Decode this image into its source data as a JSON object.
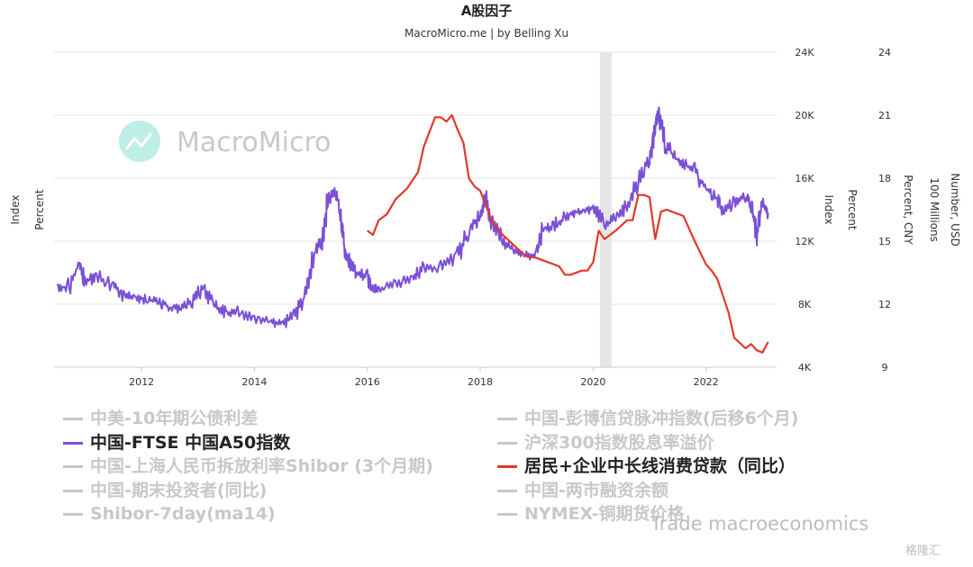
{
  "chart_data": {
    "type": "line",
    "title": "A股因子",
    "subtitle": "MacroMicro.me | by Belling Xu",
    "watermark": "MacroMicro",
    "x_ticks": [
      "2012",
      "2014",
      "2016",
      "2018",
      "2020",
      "2022"
    ],
    "xlim": [
      2010.45,
      2023.25
    ],
    "shaded_period": [
      2020.12,
      2020.33
    ],
    "axes": {
      "left_labels": [
        "Index",
        "Percent"
      ],
      "right1": {
        "ticks": [
          "4K",
          "8K",
          "12K",
          "16K",
          "20K",
          "24K"
        ],
        "ylim": [
          4000,
          24000
        ],
        "labels": [
          "Index",
          "Percent"
        ]
      },
      "right2": {
        "ticks": [
          "9",
          "12",
          "15",
          "18",
          "21",
          "24"
        ],
        "ylim": [
          9,
          24
        ],
        "labels": [
          "Percent, CNY"
        ]
      },
      "right3": {
        "labels": [
          "Number, USD",
          "100 Millions"
        ]
      }
    },
    "series": [
      {
        "name": "中国-FTSE 中国A50指数",
        "color": "#7b4fd6",
        "axis": "right1",
        "x": [
          2010.5,
          2010.7,
          2010.9,
          2011.0,
          2011.2,
          2011.5,
          2011.7,
          2011.9,
          2012.1,
          2012.3,
          2012.5,
          2012.7,
          2012.9,
          2013.1,
          2013.3,
          2013.5,
          2013.7,
          2014.0,
          2014.3,
          2014.5,
          2014.7,
          2014.9,
          2015.1,
          2015.2,
          2015.3,
          2015.45,
          2015.55,
          2015.6,
          2015.7,
          2015.8,
          2016.0,
          2016.1,
          2016.2,
          2016.5,
          2016.8,
          2017.0,
          2017.3,
          2017.6,
          2017.8,
          2018.0,
          2018.1,
          2018.2,
          2018.4,
          2018.6,
          2018.8,
          2019.0,
          2019.1,
          2019.3,
          2019.5,
          2019.7,
          2019.9,
          2020.0,
          2020.2,
          2020.4,
          2020.6,
          2020.8,
          2021.0,
          2021.1,
          2021.15,
          2021.3,
          2021.5,
          2021.6,
          2021.8,
          2022.0,
          2022.2,
          2022.3,
          2022.5,
          2022.7,
          2022.8,
          2022.9,
          2023.0,
          2023.1
        ],
        "values": [
          9200,
          9000,
          10600,
          9400,
          9800,
          9200,
          8500,
          8400,
          8300,
          8200,
          7800,
          7700,
          8200,
          9100,
          7900,
          7400,
          7500,
          7100,
          6800,
          6800,
          7200,
          8500,
          11600,
          12000,
          14600,
          15200,
          12800,
          11500,
          10500,
          10000,
          9700,
          8900,
          9000,
          9300,
          9700,
          10300,
          10300,
          11000,
          12600,
          13700,
          14800,
          13200,
          12000,
          11500,
          11200,
          11000,
          12700,
          13000,
          13500,
          13800,
          13900,
          14200,
          13000,
          13500,
          14300,
          15700,
          17300,
          19300,
          20200,
          18000,
          17100,
          16900,
          16500,
          15300,
          14700,
          13800,
          14500,
          14800,
          14300,
          12300,
          14500,
          13800
        ]
      },
      {
        "name": "居民+企业中长线消费贷款（同比）",
        "color": "#e0392b",
        "axis": "right2",
        "x": [
          2016.0,
          2016.1,
          2016.2,
          2016.35,
          2016.5,
          2016.7,
          2016.9,
          2017.0,
          2017.2,
          2017.3,
          2017.4,
          2017.5,
          2017.6,
          2017.7,
          2017.8,
          2017.9,
          2018.0,
          2018.2,
          2018.4,
          2018.6,
          2018.8,
          2019.0,
          2019.2,
          2019.4,
          2019.5,
          2019.6,
          2019.8,
          2019.9,
          2020.0,
          2020.1,
          2020.2,
          2020.4,
          2020.6,
          2020.7,
          2020.8,
          2020.9,
          2021.0,
          2021.1,
          2021.2,
          2021.3,
          2021.4,
          2021.6,
          2021.8,
          2022.0,
          2022.1,
          2022.2,
          2022.3,
          2022.4,
          2022.5,
          2022.7,
          2022.8,
          2022.9,
          2023.0,
          2023.1
        ],
        "values": [
          15.5,
          15.3,
          16.0,
          16.3,
          17.0,
          17.5,
          18.3,
          19.5,
          20.9,
          20.9,
          20.7,
          21.0,
          20.3,
          19.7,
          18.0,
          17.6,
          17.4,
          16.0,
          15.3,
          14.8,
          14.3,
          14.2,
          14.0,
          13.8,
          13.4,
          13.4,
          13.6,
          13.6,
          14.0,
          15.5,
          15.1,
          15.5,
          16.0,
          16.0,
          17.2,
          17.2,
          17.1,
          15.1,
          16.4,
          16.5,
          16.4,
          16.2,
          15.0,
          13.9,
          13.6,
          13.2,
          12.4,
          11.6,
          10.4,
          9.9,
          10.1,
          9.8,
          9.7,
          10.2
        ]
      }
    ],
    "legend": [
      {
        "label": "中美-10年期公债利差",
        "active": false
      },
      {
        "label": "中国-彭博信贷脉冲指数(后移6个月)",
        "active": false
      },
      {
        "label": "中国-FTSE 中国A50指数",
        "active": true,
        "color": "#7b4fd6"
      },
      {
        "label": "沪深300指数股息率溢价",
        "active": false
      },
      {
        "label": "中国-上海人民币拆放利率Shibor (3个月期)",
        "active": false
      },
      {
        "label": "居民+企业中长线消费贷款（同比）",
        "active": true,
        "color": "#e0392b"
      },
      {
        "label": "中国-期末投资者(同比)",
        "active": false
      },
      {
        "label": "中国-两市融资余额",
        "active": false
      },
      {
        "label": "Shibor-7day(ma14)",
        "active": false
      },
      {
        "label": "NYMEX-铜期货价格",
        "active": false
      }
    ]
  },
  "footer": {
    "text": "Trade macroeconomics",
    "badge": "格隆汇"
  }
}
